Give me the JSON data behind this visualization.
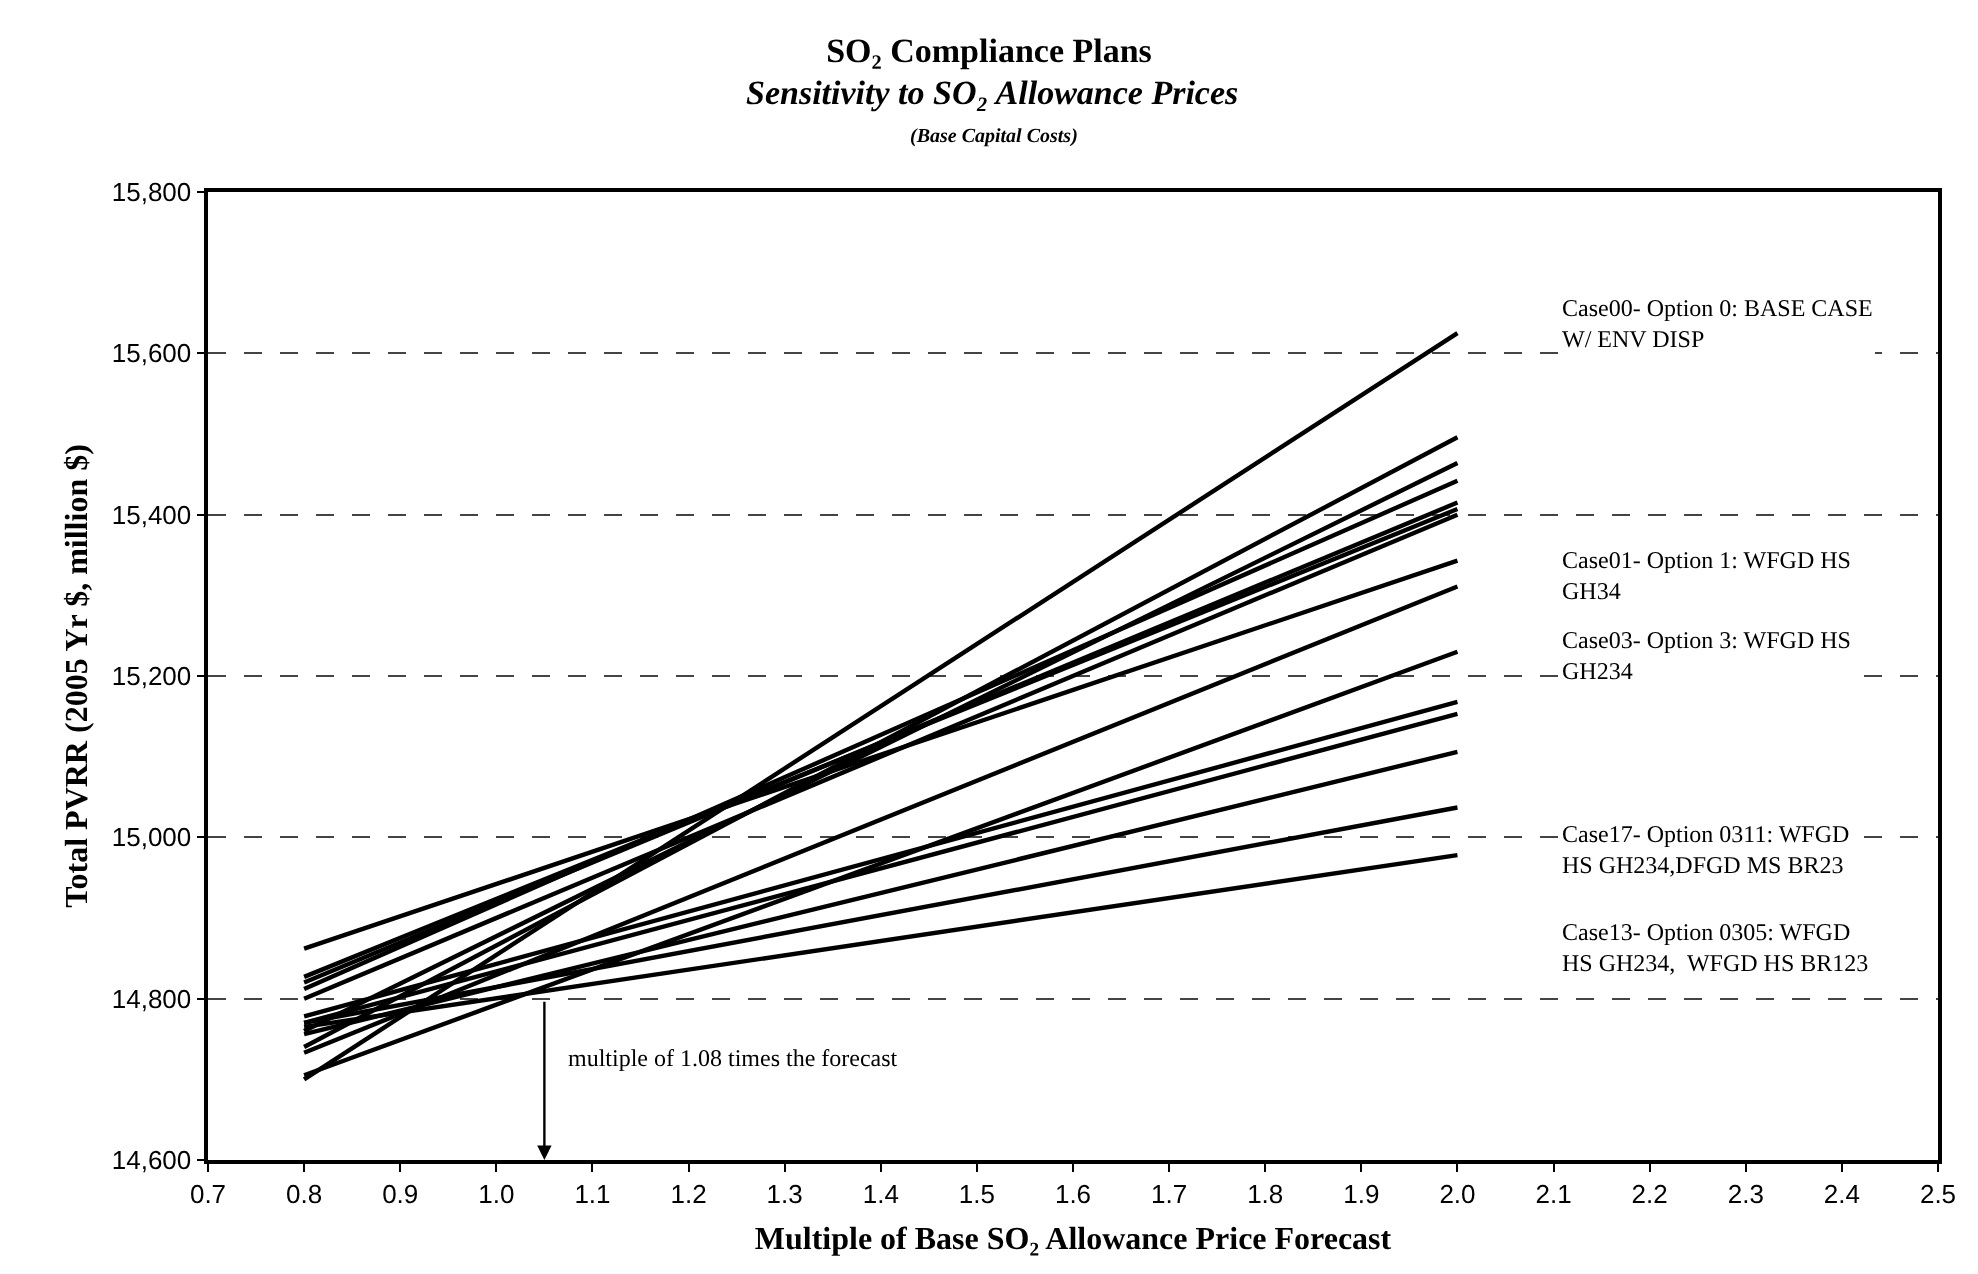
{
  "chart_data": {
    "type": "line",
    "title": "SO₂ Compliance Plans",
    "subtitle": "Sensitivity to SO₂ Allowance Prices",
    "xlabel": "Multiple of Base SO₂ Allowance Price Forecast",
    "ylabel": "Total PVRR (2005 Yr $, million $)",
    "annotations": [
      "(Base Capital Costs)",
      "Case00- Option 0: BASE CASE\nW/ ENV DISP",
      "Case01- Option 1: WFGD HS\nGH34",
      "Case03- Option 3: WFGD HS\nGH234",
      "Case17- Option 0311: WFGD\nHS GH234,DFGD MS BR23",
      "Case13- Option 0305: WFGD\nHS GH234,  WFGD HS BR123",
      {
        "text": "multiple of 1.08 times the forecast",
        "x": 1.05,
        "y": 14800
      }
    ],
    "x": [
      0.8,
      2.0
    ],
    "series": [
      {
        "color": "#000000",
        "values": [
          14700,
          15625
        ]
      },
      {
        "color": "#000000",
        "values": [
          14740,
          15496
        ]
      },
      {
        "color": "#000000",
        "values": [
          14760,
          15464
        ]
      },
      {
        "color": "#000000",
        "values": [
          14812,
          15442
        ]
      },
      {
        "color": "#000000",
        "values": [
          14820,
          15415
        ]
      },
      {
        "color": "#000000",
        "values": [
          14827,
          15407
        ]
      },
      {
        "color": "#000000",
        "values": [
          14800,
          15400
        ]
      },
      {
        "color": "#000000",
        "values": [
          14862,
          15343
        ]
      },
      {
        "color": "#000000",
        "values": [
          14733,
          15311
        ]
      },
      {
        "color": "#000000",
        "values": [
          14705,
          15230
        ]
      },
      {
        "color": "#000000",
        "values": [
          14778,
          15168
        ]
      },
      {
        "color": "#000000",
        "values": [
          14770,
          15153
        ]
      },
      {
        "color": "#000000",
        "values": [
          14756,
          15106
        ]
      },
      {
        "color": "#000000",
        "values": [
          14770,
          15037
        ]
      },
      {
        "color": "#000000",
        "values": [
          14765,
          14978
        ]
      }
    ],
    "xlim": [
      0.7,
      2.5
    ],
    "xticks": [
      0.7,
      0.8,
      0.9,
      {
        "value": 1,
        "label": "1.0"
      },
      1.1,
      1.2,
      1.3,
      1.4,
      1.5,
      1.6,
      1.7,
      1.8,
      1.9,
      {
        "value": 2,
        "label": "2.0"
      },
      2.1,
      2.2,
      2.3,
      2.4,
      2.5
    ],
    "ylim": [
      14600,
      15800
    ],
    "yticks": [
      {
        "value": 14600,
        "label": "14,600"
      },
      {
        "value": 14800,
        "label": "14,800"
      },
      {
        "value": 15000,
        "label": "15,000"
      },
      {
        "value": 15200,
        "label": "15,200"
      },
      {
        "value": 15400,
        "label": "15,400"
      },
      {
        "value": 15600,
        "label": "15,600"
      },
      {
        "value": 15800,
        "label": "15,800"
      }
    ],
    "grid": "y",
    "marker": "none",
    "line_style": "solid"
  }
}
